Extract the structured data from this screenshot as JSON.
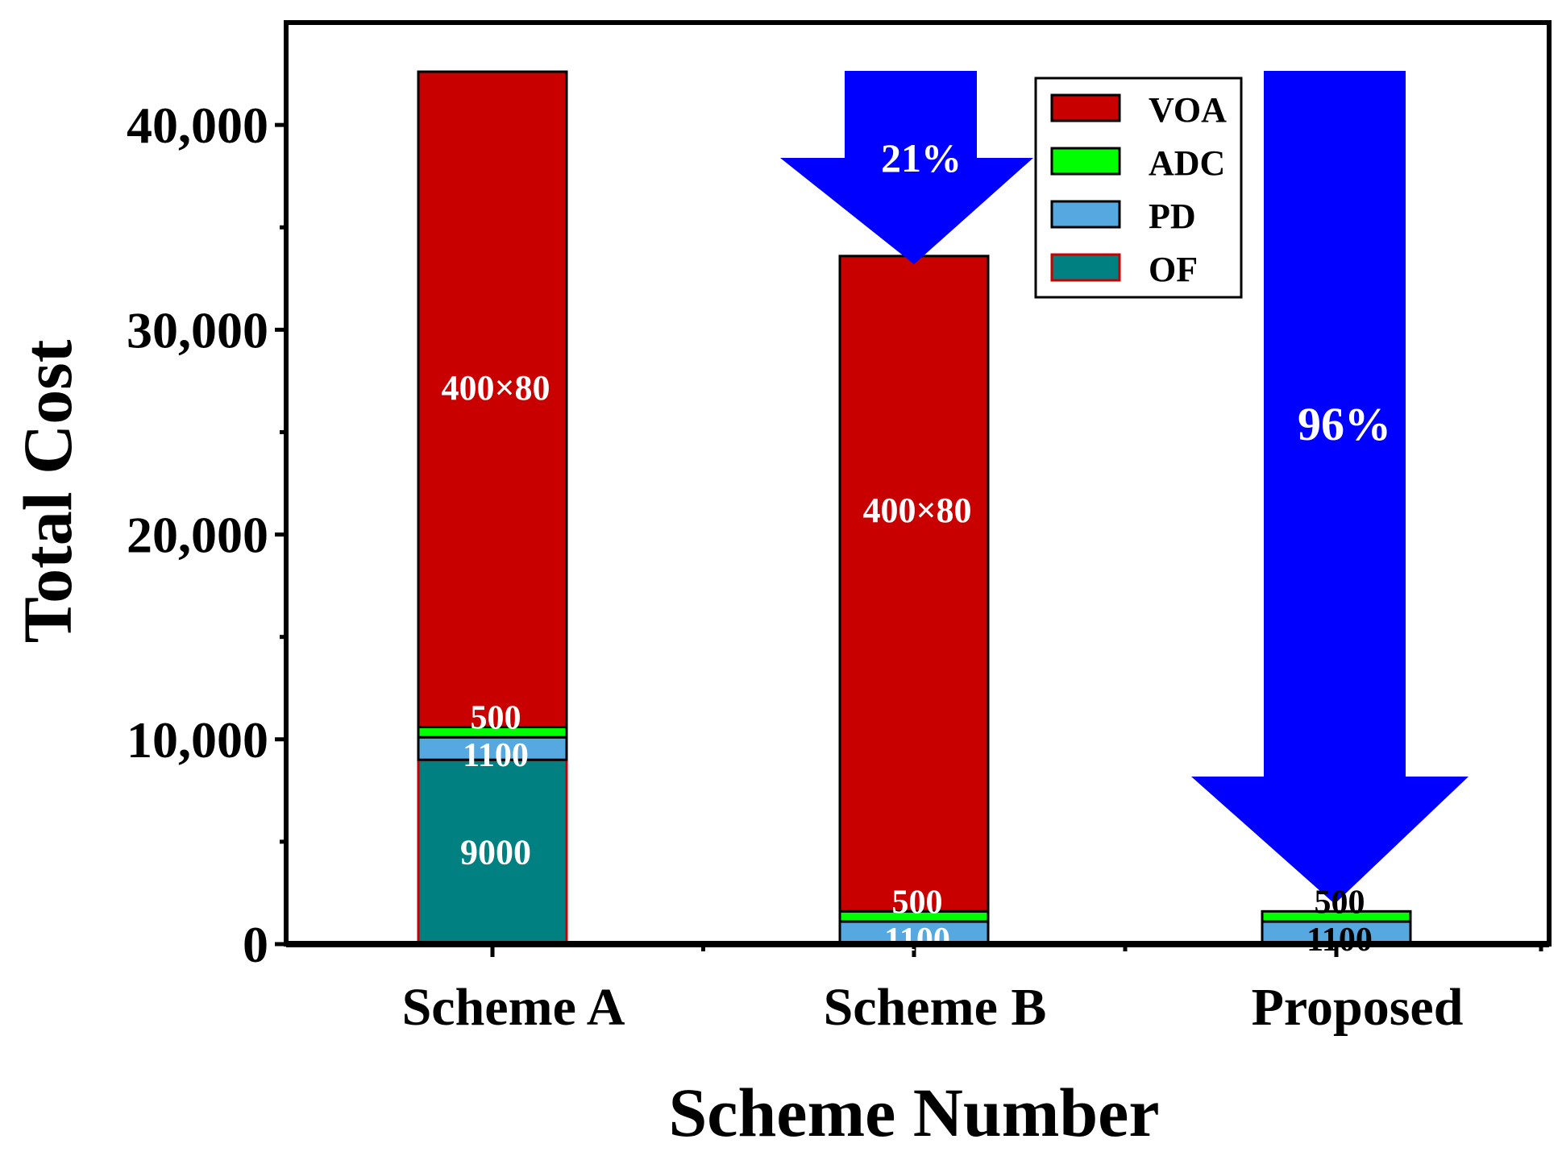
{
  "chart_data": {
    "type": "bar",
    "stacked": true,
    "xlabel": "Scheme Number",
    "ylabel": "Total Cost",
    "ylim": [
      0,
      45000
    ],
    "y_ticks": [
      0,
      10000,
      20000,
      30000,
      40000
    ],
    "y_tick_labels": [
      "0",
      "10,000",
      "20,000",
      "30,000",
      "40,000"
    ],
    "categories": [
      "Scheme A",
      "Scheme B",
      "Proposed"
    ],
    "series": [
      {
        "name": "OF",
        "color": "#008080",
        "values": [
          9000,
          0,
          0
        ]
      },
      {
        "name": "PD",
        "color": "#55A8E0",
        "values": [
          1100,
          1100,
          1100
        ]
      },
      {
        "name": "ADC",
        "color": "#00FF00",
        "values": [
          500,
          500,
          500
        ]
      },
      {
        "name": "VOA",
        "color": "#C80000",
        "values": [
          32000,
          32000,
          0
        ]
      }
    ],
    "legend_order": [
      "VOA",
      "ADC",
      "PD",
      "OF"
    ],
    "legend_position": "top-right",
    "segment_labels": [
      {
        "category": "Scheme A",
        "series": "OF",
        "text": "9000",
        "color": "#ffffff"
      },
      {
        "category": "Scheme A",
        "series": "PD",
        "text": "1100",
        "color": "#ffffff"
      },
      {
        "category": "Scheme A",
        "series": "ADC",
        "text": "500",
        "color": "#ffffff"
      },
      {
        "category": "Scheme A",
        "series": "VOA",
        "text": "400×80",
        "color": "#ffffff"
      },
      {
        "category": "Scheme B",
        "series": "PD",
        "text": "1100",
        "color": "#ffffff"
      },
      {
        "category": "Scheme B",
        "series": "ADC",
        "text": "500",
        "color": "#ffffff"
      },
      {
        "category": "Scheme B",
        "series": "VOA",
        "text": "400×80",
        "color": "#ffffff"
      },
      {
        "category": "Proposed",
        "series": "PD",
        "text": "1100",
        "color": "#000000"
      },
      {
        "category": "Proposed",
        "series": "ADC",
        "text": "500",
        "color": "#000000"
      }
    ],
    "annotations": [
      {
        "type": "reduction-arrow",
        "category": "Scheme B",
        "text": "21%",
        "color": "#0000FF"
      },
      {
        "type": "reduction-arrow",
        "category": "Proposed",
        "text": "96%",
        "color": "#0000FF"
      }
    ]
  }
}
